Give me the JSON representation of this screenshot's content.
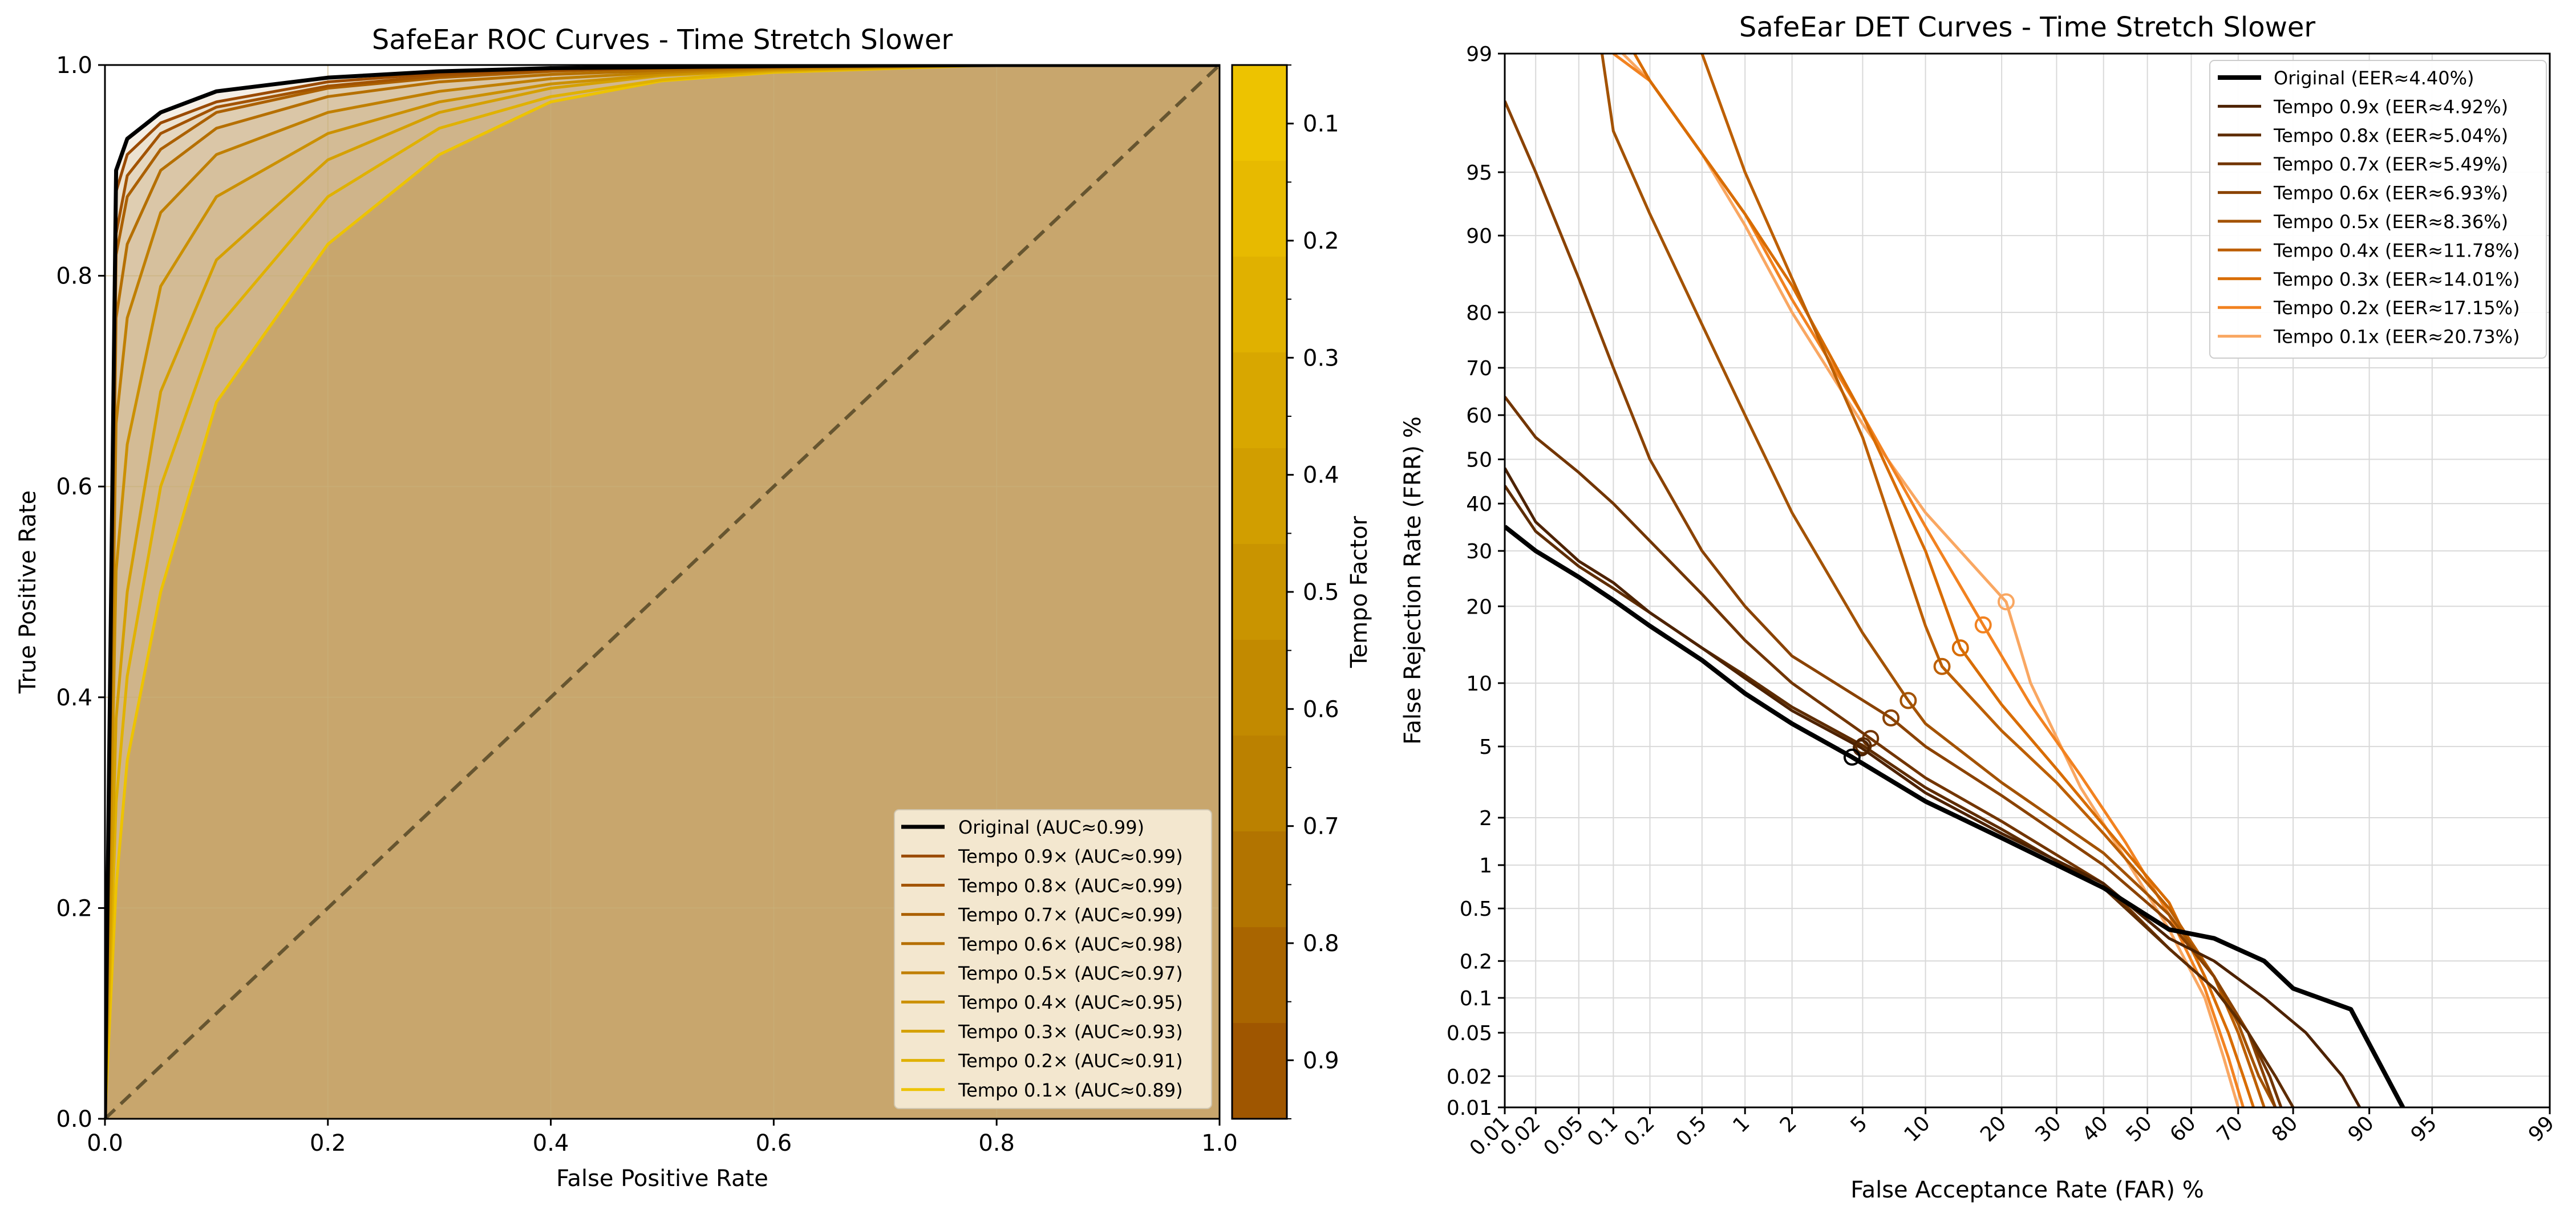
{
  "chart_data": [
    {
      "type": "line",
      "title": "SafeEar ROC Curves - Time Stretch Slower",
      "xlabel": "False Positive Rate",
      "ylabel": "True Positive Rate",
      "xlim": [
        0,
        1
      ],
      "ylim": [
        0,
        1
      ],
      "xticks": [
        "0.0",
        "0.2",
        "0.4",
        "0.6",
        "0.8",
        "1.0"
      ],
      "yticks": [
        "0.0",
        "0.2",
        "0.4",
        "0.6",
        "0.8",
        "1.0"
      ],
      "grid": true,
      "legend_position": "lower-right",
      "diagonal_reference": true,
      "area_fill_color": "#d4b152",
      "x": [
        0,
        0.01,
        0.02,
        0.05,
        0.1,
        0.2,
        0.3,
        0.4,
        0.5,
        0.6,
        0.8,
        1.0
      ],
      "series": [
        {
          "name": "Original (AUC≈0.99)",
          "color": "#000000",
          "values": [
            0,
            0.9,
            0.93,
            0.955,
            0.975,
            0.988,
            0.994,
            0.997,
            0.998,
            0.999,
            1.0,
            1.0
          ]
        },
        {
          "name": "Tempo 0.9× (AUC≈0.99)",
          "color": "#9a4a00",
          "values": [
            0,
            0.88,
            0.915,
            0.945,
            0.965,
            0.984,
            0.992,
            0.996,
            0.998,
            0.999,
            1.0,
            1.0
          ]
        },
        {
          "name": "Tempo 0.8× (AUC≈0.99)",
          "color": "#a25300",
          "values": [
            0,
            0.84,
            0.895,
            0.935,
            0.96,
            0.98,
            0.99,
            0.995,
            0.997,
            0.998,
            1.0,
            1.0
          ]
        },
        {
          "name": "Tempo 0.7× (AUC≈0.99)",
          "color": "#ab6000",
          "values": [
            0,
            0.82,
            0.875,
            0.92,
            0.955,
            0.978,
            0.988,
            0.994,
            0.997,
            0.998,
            1.0,
            1.0
          ]
        },
        {
          "name": "Tempo 0.6× (AUC≈0.98)",
          "color": "#b56f00",
          "values": [
            0,
            0.76,
            0.83,
            0.9,
            0.94,
            0.97,
            0.984,
            0.991,
            0.995,
            0.998,
            1.0,
            1.0
          ]
        },
        {
          "name": "Tempo 0.5× (AUC≈0.97)",
          "color": "#c07f00",
          "values": [
            0,
            0.66,
            0.76,
            0.86,
            0.915,
            0.955,
            0.975,
            0.987,
            0.993,
            0.997,
            1.0,
            1.0
          ]
        },
        {
          "name": "Tempo 0.4× (AUC≈0.95)",
          "color": "#cb9000",
          "values": [
            0,
            0.52,
            0.64,
            0.79,
            0.875,
            0.935,
            0.965,
            0.982,
            0.991,
            0.996,
            1.0,
            1.0
          ]
        },
        {
          "name": "Tempo 0.3× (AUC≈0.93)",
          "color": "#d5a000",
          "values": [
            0,
            0.38,
            0.5,
            0.69,
            0.815,
            0.91,
            0.955,
            0.978,
            0.99,
            0.995,
            1.0,
            1.0
          ]
        },
        {
          "name": "Tempo 0.2× (AUC≈0.91)",
          "color": "#e0b100",
          "values": [
            0,
            0.3,
            0.42,
            0.6,
            0.75,
            0.875,
            0.94,
            0.97,
            0.986,
            0.994,
            1.0,
            1.0
          ]
        },
        {
          "name": "Tempo 0.1× (AUC≈0.89)",
          "color": "#edc300",
          "values": [
            0,
            0.22,
            0.34,
            0.5,
            0.68,
            0.83,
            0.915,
            0.965,
            0.985,
            0.993,
            1.0,
            1.0
          ]
        }
      ],
      "colorbar": {
        "label": "Tempo Factor",
        "ticks": [
          "0.1",
          "0.2",
          "0.3",
          "0.4",
          "0.5",
          "0.6",
          "0.7",
          "0.8",
          "0.9"
        ],
        "colors": [
          "#edc300",
          "#e7ba00",
          "#e0b100",
          "#d8a700",
          "#d19e00",
          "#c99400",
          "#c28a00",
          "#bb8100",
          "#b27400",
          "#a96500",
          "#9f5600"
        ]
      }
    },
    {
      "type": "line",
      "title": "SafeEar DET Curves - Time Stretch Slower",
      "xlabel": "False Acceptance Rate (FAR) %",
      "ylabel": "False Rejection Rate (FRR) %",
      "xscale": "probit",
      "yscale": "probit",
      "xlim": [
        0.01,
        99
      ],
      "ylim": [
        0.01,
        99
      ],
      "xticks": [
        "0.01",
        "0.02",
        "0.05",
        "0.1",
        "0.2",
        "0.5",
        "1",
        "2",
        "5",
        "10",
        "20",
        "30",
        "40",
        "50",
        "60",
        "70",
        "80",
        "90",
        "95",
        "99"
      ],
      "yticks": [
        "0.01",
        "0.02",
        "0.05",
        "0.1",
        "0.2",
        "0.5",
        "1",
        "2",
        "5",
        "10",
        "20",
        "30",
        "40",
        "50",
        "60",
        "70",
        "80",
        "90",
        "95",
        "99"
      ],
      "grid": true,
      "legend_position": "top-right",
      "series": [
        {
          "name": "Original (EER≈4.40%)",
          "color": "#000000",
          "eer": 4.4,
          "x": [
            0.01,
            0.02,
            0.05,
            0.1,
            0.2,
            0.5,
            1,
            2,
            4.4,
            10,
            20,
            40,
            55,
            65,
            75,
            80,
            88,
            93
          ],
          "y": [
            35,
            30,
            25,
            21,
            17,
            12.5,
            9,
            6.5,
            4.4,
            2.5,
            1.5,
            0.7,
            0.35,
            0.3,
            0.2,
            0.12,
            0.08,
            0.01
          ]
        },
        {
          "name": "Tempo 0.9x (EER≈4.92%)",
          "color": "#4d2200",
          "eer": 4.92,
          "x": [
            0.01,
            0.02,
            0.05,
            0.1,
            0.2,
            0.5,
            1,
            2,
            4.92,
            10,
            20,
            40,
            55,
            65,
            75,
            82,
            87,
            89
          ],
          "y": [
            48,
            36,
            28,
            24,
            19,
            14,
            10.5,
            7.5,
            4.92,
            2.8,
            1.6,
            0.75,
            0.3,
            0.2,
            0.1,
            0.05,
            0.02,
            0.01
          ]
        },
        {
          "name": "Tempo 0.8x (EER≈5.04%)",
          "color": "#5e2c00",
          "eer": 5.04,
          "x": [
            0.01,
            0.02,
            0.05,
            0.1,
            0.2,
            0.5,
            1,
            2,
            5.04,
            10,
            20,
            40,
            55,
            65,
            72,
            77,
            80
          ],
          "y": [
            44,
            34,
            27,
            23,
            19,
            14,
            10.8,
            7.8,
            5.04,
            3.0,
            1.7,
            0.7,
            0.25,
            0.12,
            0.05,
            0.02,
            0.01
          ]
        },
        {
          "name": "Tempo 0.7x (EER≈5.49%)",
          "color": "#723500",
          "eer": 5.49,
          "x": [
            0.01,
            0.02,
            0.05,
            0.1,
            0.2,
            0.5,
            1,
            2,
            5.49,
            10,
            20,
            40,
            55,
            65,
            72,
            76,
            78
          ],
          "y": [
            64,
            55,
            47,
            40,
            32,
            22,
            15,
            10,
            5.49,
            3.4,
            1.9,
            0.75,
            0.25,
            0.12,
            0.05,
            0.02,
            0.01
          ]
        },
        {
          "name": "Tempo 0.6x (EER≈6.93%)",
          "color": "#8a4200",
          "eer": 6.93,
          "x": [
            0.01,
            0.02,
            0.05,
            0.1,
            0.2,
            0.5,
            1,
            2,
            6.93,
            10,
            20,
            40,
            55,
            65,
            72,
            75,
            77
          ],
          "y": [
            98,
            95,
            85,
            70,
            50,
            30,
            20,
            13,
            6.93,
            5.0,
            2.7,
            1.0,
            0.4,
            0.15,
            0.05,
            0.02,
            0.01
          ]
        },
        {
          "name": "Tempo 0.5x (EER≈8.36%)",
          "color": "#a35200",
          "eer": 8.36,
          "x": [
            0.08,
            0.1,
            0.2,
            0.5,
            1,
            2,
            5,
            8.36,
            10,
            20,
            40,
            55,
            65,
            70,
            74,
            77
          ],
          "y": [
            99,
            97,
            92,
            78,
            60,
            38,
            16,
            8.36,
            6.5,
            3.2,
            1.2,
            0.45,
            0.15,
            0.06,
            0.02,
            0.01
          ]
        },
        {
          "name": "Tempo 0.4x (EER≈11.78%)",
          "color": "#bd5f00",
          "eer": 11.78,
          "x": [
            0.5,
            1,
            2,
            5,
            10,
            11.78,
            20,
            30,
            40,
            55,
            65,
            70,
            73,
            75
          ],
          "y": [
            99,
            95,
            85,
            55,
            17,
            11.78,
            6,
            3.2,
            1.6,
            0.5,
            0.15,
            0.05,
            0.02,
            0.01
          ]
        },
        {
          "name": "Tempo 0.3x (EER≈14.01%)",
          "color": "#d86c00",
          "eer": 14.01,
          "x": [
            0.15,
            0.2,
            0.5,
            1,
            2,
            5,
            10,
            14.01,
            20,
            30,
            40,
            55,
            63,
            68,
            71,
            73
          ],
          "y": [
            99,
            98.5,
            96,
            92,
            84,
            60,
            30,
            14.01,
            8,
            3.8,
            1.8,
            0.55,
            0.15,
            0.05,
            0.02,
            0.01
          ]
        },
        {
          "name": "Tempo 0.2x (EER≈17.15%)",
          "color": "#f28220",
          "eer": 17.15,
          "x": [
            0.1,
            0.2,
            0.5,
            1,
            2,
            5,
            10,
            17.15,
            25,
            35,
            45,
            55,
            63,
            68,
            71
          ],
          "y": [
            99,
            98.5,
            96,
            92,
            82,
            60,
            35,
            17.15,
            8,
            3.5,
            1.4,
            0.45,
            0.12,
            0.03,
            0.01
          ]
        },
        {
          "name": "Tempo 0.1x (EER≈20.73%)",
          "color": "#f9a762",
          "eer": 20.73,
          "x": [
            0.12,
            0.2,
            0.5,
            1,
            2,
            5,
            10,
            20.73,
            25,
            35,
            45,
            55,
            63,
            67,
            70
          ],
          "y": [
            99,
            98.5,
            96,
            91,
            80,
            58,
            38,
            20.73,
            10,
            3.0,
            1.1,
            0.35,
            0.1,
            0.03,
            0.01
          ]
        }
      ]
    }
  ]
}
